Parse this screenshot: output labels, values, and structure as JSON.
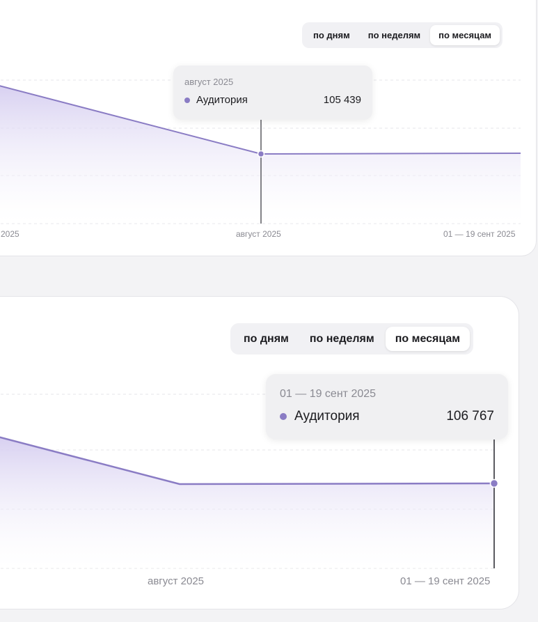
{
  "toggle_options": [
    "по дням",
    "по неделям",
    "по месяцам"
  ],
  "toggle_active_index": 2,
  "colors": {
    "series": "#8a7cc4",
    "area_top": "#d8d2f1",
    "crosshair": "#5a5a60",
    "gridline": "#e6e6ea"
  },
  "chart_data": [
    {
      "type": "area",
      "series": [
        {
          "name": "Аудитория",
          "values": [
            null,
            105439,
            105462
          ]
        }
      ],
      "x": [
        "",
        "август 2025",
        "01 — 19 сент 2025"
      ],
      "x_tick_labels": [
        " 2025",
        "август 2025",
        "01 — 19 сент 2025"
      ],
      "tooltip": {
        "date": "август 2025",
        "series": "Аудитория",
        "value": "105 439"
      },
      "hover_index": 1,
      "grid": true
    },
    {
      "type": "area",
      "series": [
        {
          "name": "Аудитория",
          "values": [
            null,
            106755,
            106767
          ]
        }
      ],
      "x": [
        "",
        "август 2025",
        "01 — 19 сент 2025"
      ],
      "x_tick_labels": [
        "",
        "август 2025",
        "01 — 19 сент 2025"
      ],
      "tooltip": {
        "date": "01 — 19 сент 2025",
        "series": "Аудитория",
        "value": "106 767"
      },
      "hover_index": 2,
      "grid": true
    }
  ]
}
